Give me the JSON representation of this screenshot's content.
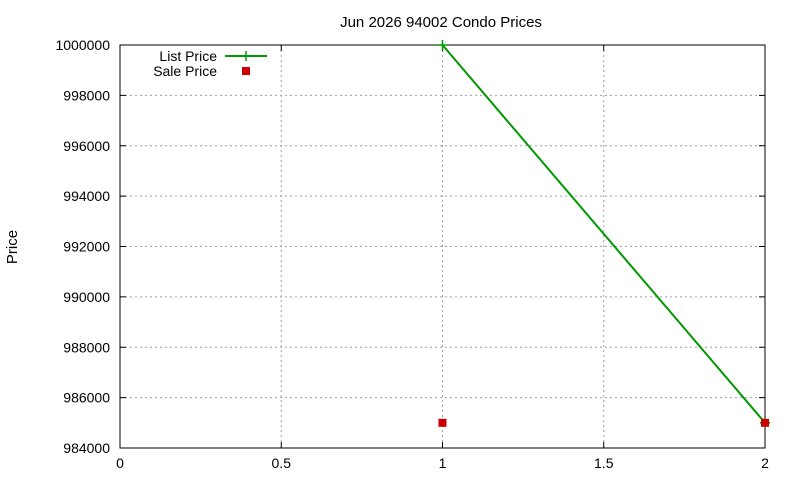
{
  "chart_data": {
    "type": "line",
    "title": "Jun 2026 94002 Condo Prices",
    "xlabel": "",
    "ylabel": "Price",
    "xlim": [
      0,
      2
    ],
    "ylim": [
      984000,
      1000000
    ],
    "xticks": [
      0,
      0.5,
      1,
      1.5,
      2
    ],
    "xtick_labels": [
      "0",
      "0.5",
      "1",
      "1.5",
      "2"
    ],
    "yticks": [
      984000,
      986000,
      988000,
      990000,
      992000,
      994000,
      996000,
      998000,
      1000000
    ],
    "ytick_labels": [
      "984000",
      "986000",
      "988000",
      "990000",
      "992000",
      "994000",
      "996000",
      "998000",
      "1000000"
    ],
    "grid": true,
    "legend_position": "top-left",
    "series": [
      {
        "name": "List Price",
        "style": "line-points",
        "marker": "plus",
        "color": "#009900",
        "points": [
          [
            1,
            1000000
          ],
          [
            2,
            985000
          ]
        ]
      },
      {
        "name": "Sale Price",
        "style": "points",
        "marker": "square",
        "color": "#cc0000",
        "points": [
          [
            1,
            985000
          ],
          [
            2,
            985000
          ]
        ]
      }
    ]
  }
}
